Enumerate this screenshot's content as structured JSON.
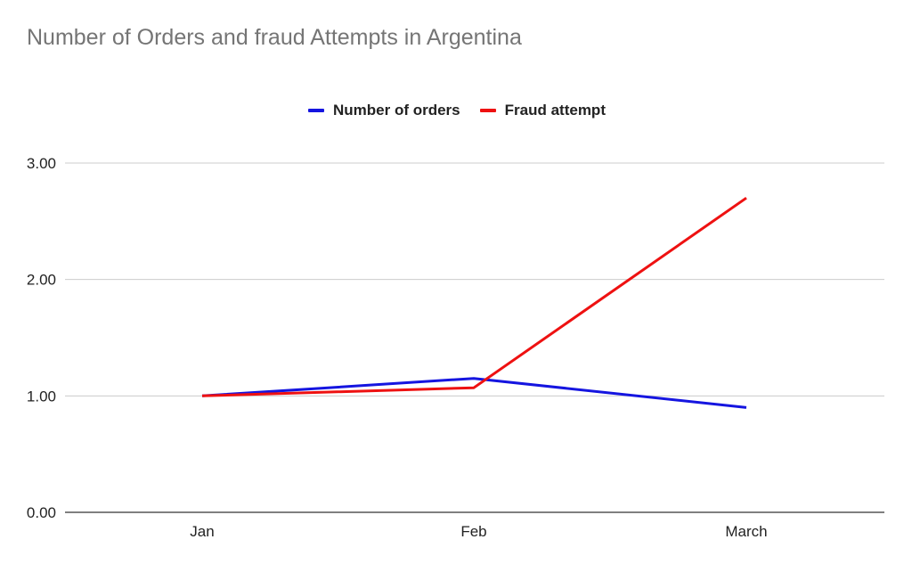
{
  "chart_data": {
    "type": "line",
    "title": "Number of Orders and fraud Attempts in Argentina",
    "xlabel": "",
    "ylabel": "",
    "categories": [
      "Jan",
      "Feb",
      "March"
    ],
    "series": [
      {
        "name": "Number of orders",
        "values": [
          1.0,
          1.15,
          0.9
        ],
        "color": "#1515e0"
      },
      {
        "name": "Fraud attempt",
        "values": [
          1.0,
          1.07,
          2.7
        ],
        "color": "#ee1111"
      }
    ],
    "ylim": [
      0,
      3
    ],
    "yticks": [
      "0.00",
      "1.00",
      "2.00",
      "3.00"
    ],
    "grid": true,
    "legend": "top-center"
  }
}
